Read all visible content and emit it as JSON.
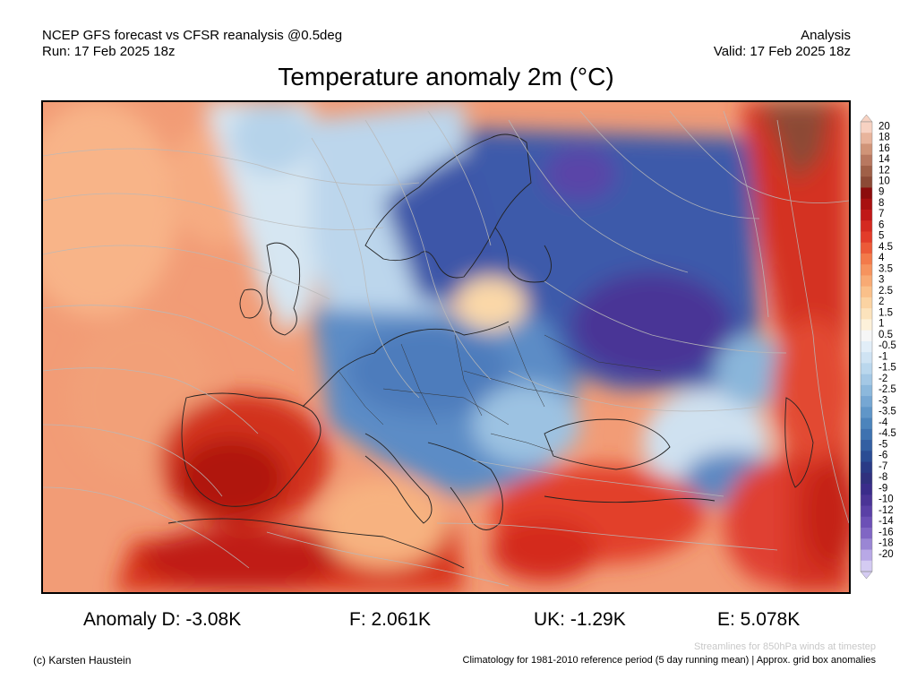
{
  "header": {
    "line1_left": "NCEP GFS forecast vs CFSR reanalysis @0.5deg",
    "line2_left": "Run: 17 Feb 2025 18z",
    "line1_right": "Analysis",
    "line2_right": "Valid: 17 Feb 2025 18z"
  },
  "title": "Temperature anomaly 2m (°C)",
  "colorbar": {
    "labels": [
      "20",
      "18",
      "16",
      "14",
      "12",
      "10",
      "9",
      "8",
      "7",
      "6",
      "5",
      "4.5",
      "4",
      "3.5",
      "3",
      "2.5",
      "2",
      "1.5",
      "1",
      "0.5",
      "-0.5",
      "-1",
      "-1.5",
      "-2",
      "-2.5",
      "-3",
      "-3.5",
      "-4",
      "-4.5",
      "-5",
      "-6",
      "-7",
      "-8",
      "-9",
      "-10",
      "-12",
      "-14",
      "-16",
      "-18",
      "-20"
    ],
    "colors": [
      "#f7d2c2",
      "#e8b49c",
      "#d09478",
      "#b87860",
      "#a06048",
      "#8c4a36",
      "#8c0c0c",
      "#a81010",
      "#c01818",
      "#d42a20",
      "#e23c2a",
      "#ec5a38",
      "#f37a4a",
      "#f6935e",
      "#f8aa74",
      "#fac08a",
      "#fbd3a2",
      "#fce3bc",
      "#fdf1da",
      "#f6f6f6",
      "#e2eef8",
      "#cfe3f3",
      "#bad7ed",
      "#a4c8e5",
      "#8cb8dc",
      "#76a7d3",
      "#6096c8",
      "#4c84bc",
      "#3e72b0",
      "#335fa2",
      "#2a4c94",
      "#2a3a86",
      "#30307e",
      "#3a2c8a",
      "#4a3496",
      "#5a40a6",
      "#6c50b6",
      "#8066c4",
      "#9a86d4",
      "#b8a8e6",
      "#d4cbf2"
    ]
  },
  "stats": {
    "d": "Anomaly D: -3.08K",
    "f": "F: 2.061K",
    "uk": "UK: -1.29K",
    "e": "E: 5.078K"
  },
  "footer": {
    "streamlines_note": "Streamlines for 850hPa winds at timestep",
    "copyright": "(c) Karsten Haustein",
    "climatology_note": "Climatology for 1981-2010 reference period (5 day running mean) | Approx. grid box anomalies"
  }
}
